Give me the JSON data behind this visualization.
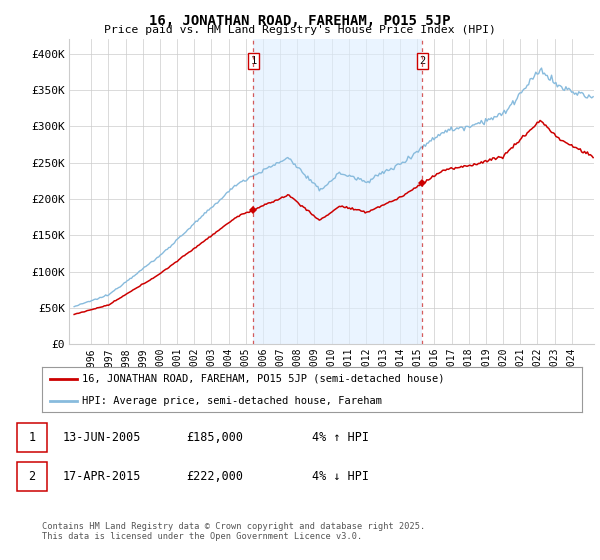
{
  "title": "16, JONATHAN ROAD, FAREHAM, PO15 5JP",
  "subtitle": "Price paid vs. HM Land Registry's House Price Index (HPI)",
  "ylabel_ticks": [
    "£0",
    "£50K",
    "£100K",
    "£150K",
    "£200K",
    "£250K",
    "£300K",
    "£350K",
    "£400K"
  ],
  "ytick_values": [
    0,
    50000,
    100000,
    150000,
    200000,
    250000,
    300000,
    350000,
    400000
  ],
  "ylim": [
    0,
    420000
  ],
  "xlim_start": 1994.7,
  "xlim_end": 2025.3,
  "sale1_year": 2005.45,
  "sale1_price": 185000,
  "sale1_label": "1",
  "sale1_date": "13-JUN-2005",
  "sale1_pct": "4% ↑ HPI",
  "sale2_year": 2015.29,
  "sale2_price": 222000,
  "sale2_label": "2",
  "sale2_date": "17-APR-2015",
  "sale2_pct": "4% ↓ HPI",
  "line_color_property": "#cc0000",
  "line_color_hpi": "#88bbdd",
  "vline_color": "#cc3333",
  "grid_color": "#cccccc",
  "bg_color": "#ffffff",
  "shade_color": "#ddeeff",
  "legend_label_property": "16, JONATHAN ROAD, FAREHAM, PO15 5JP (semi-detached house)",
  "legend_label_hpi": "HPI: Average price, semi-detached house, Fareham",
  "footer": "Contains HM Land Registry data © Crown copyright and database right 2025.\nThis data is licensed under the Open Government Licence v3.0.",
  "xtick_years": [
    1996,
    1997,
    1998,
    1999,
    2000,
    2001,
    2002,
    2003,
    2004,
    2005,
    2006,
    2007,
    2008,
    2009,
    2010,
    2011,
    2012,
    2013,
    2014,
    2015,
    2016,
    2017,
    2018,
    2019,
    2020,
    2021,
    2022,
    2023,
    2024
  ]
}
